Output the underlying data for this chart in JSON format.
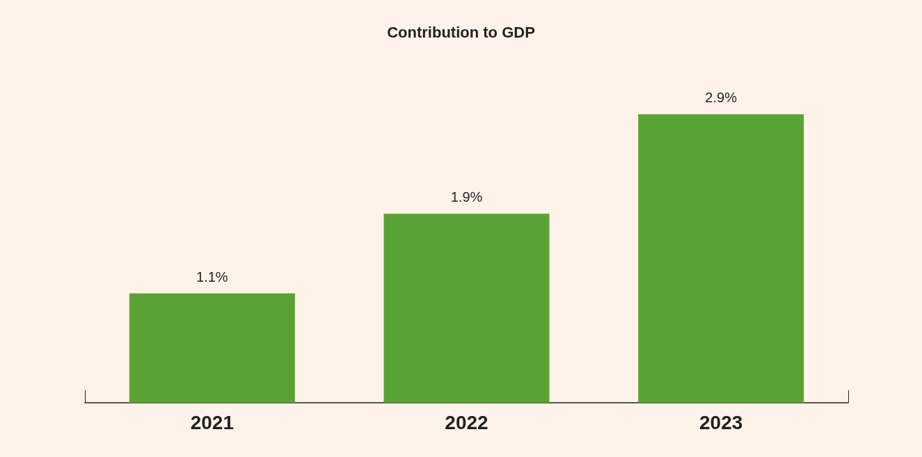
{
  "chart_data": {
    "type": "bar",
    "title": "Contribution to GDP",
    "categories": [
      "2021",
      "2022",
      "2023"
    ],
    "values": [
      1.1,
      1.9,
      2.9
    ],
    "value_labels": [
      "1.1%",
      "1.9%",
      "2.9%"
    ],
    "color": "#5ba234"
  }
}
